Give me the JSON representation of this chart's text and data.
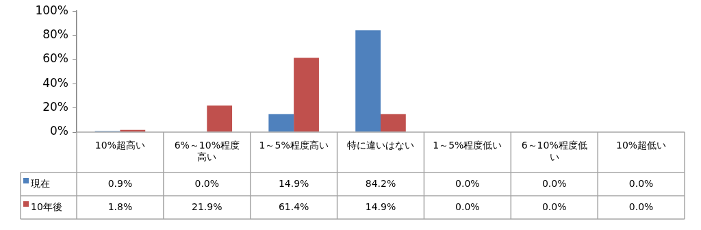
{
  "chart_data": {
    "type": "bar",
    "categories": [
      "10%超高い",
      "6%～10%程度高い",
      "1～5%程度高い",
      "特に違いはない",
      "1～5%程度低い",
      "6～10%程度低い",
      "10%超低い"
    ],
    "series": [
      {
        "name": "現在",
        "color": "#4f81bd",
        "values": [
          0.9,
          0.0,
          14.9,
          84.2,
          0.0,
          0.0,
          0.0
        ],
        "value_labels": [
          "0.9%",
          "0.0%",
          "14.9%",
          "84.2%",
          "0.0%",
          "0.0%",
          "0.0%"
        ]
      },
      {
        "name": "10年後",
        "color": "#c0504d",
        "values": [
          1.8,
          21.9,
          61.4,
          14.9,
          0.0,
          0.0,
          0.0
        ],
        "value_labels": [
          "1.8%",
          "21.9%",
          "61.4%",
          "14.9%",
          "0.0%",
          "0.0%",
          "0.0%"
        ]
      }
    ],
    "ylim": [
      0,
      100
    ],
    "yticks": [
      {
        "value": 0,
        "label": "0%"
      },
      {
        "value": 20,
        "label": "20%"
      },
      {
        "value": 40,
        "label": "40%"
      },
      {
        "value": 60,
        "label": "60%"
      },
      {
        "value": 80,
        "label": "80%"
      },
      {
        "value": 100,
        "label": "100%"
      }
    ],
    "grid": false,
    "legend": "bottom left"
  }
}
